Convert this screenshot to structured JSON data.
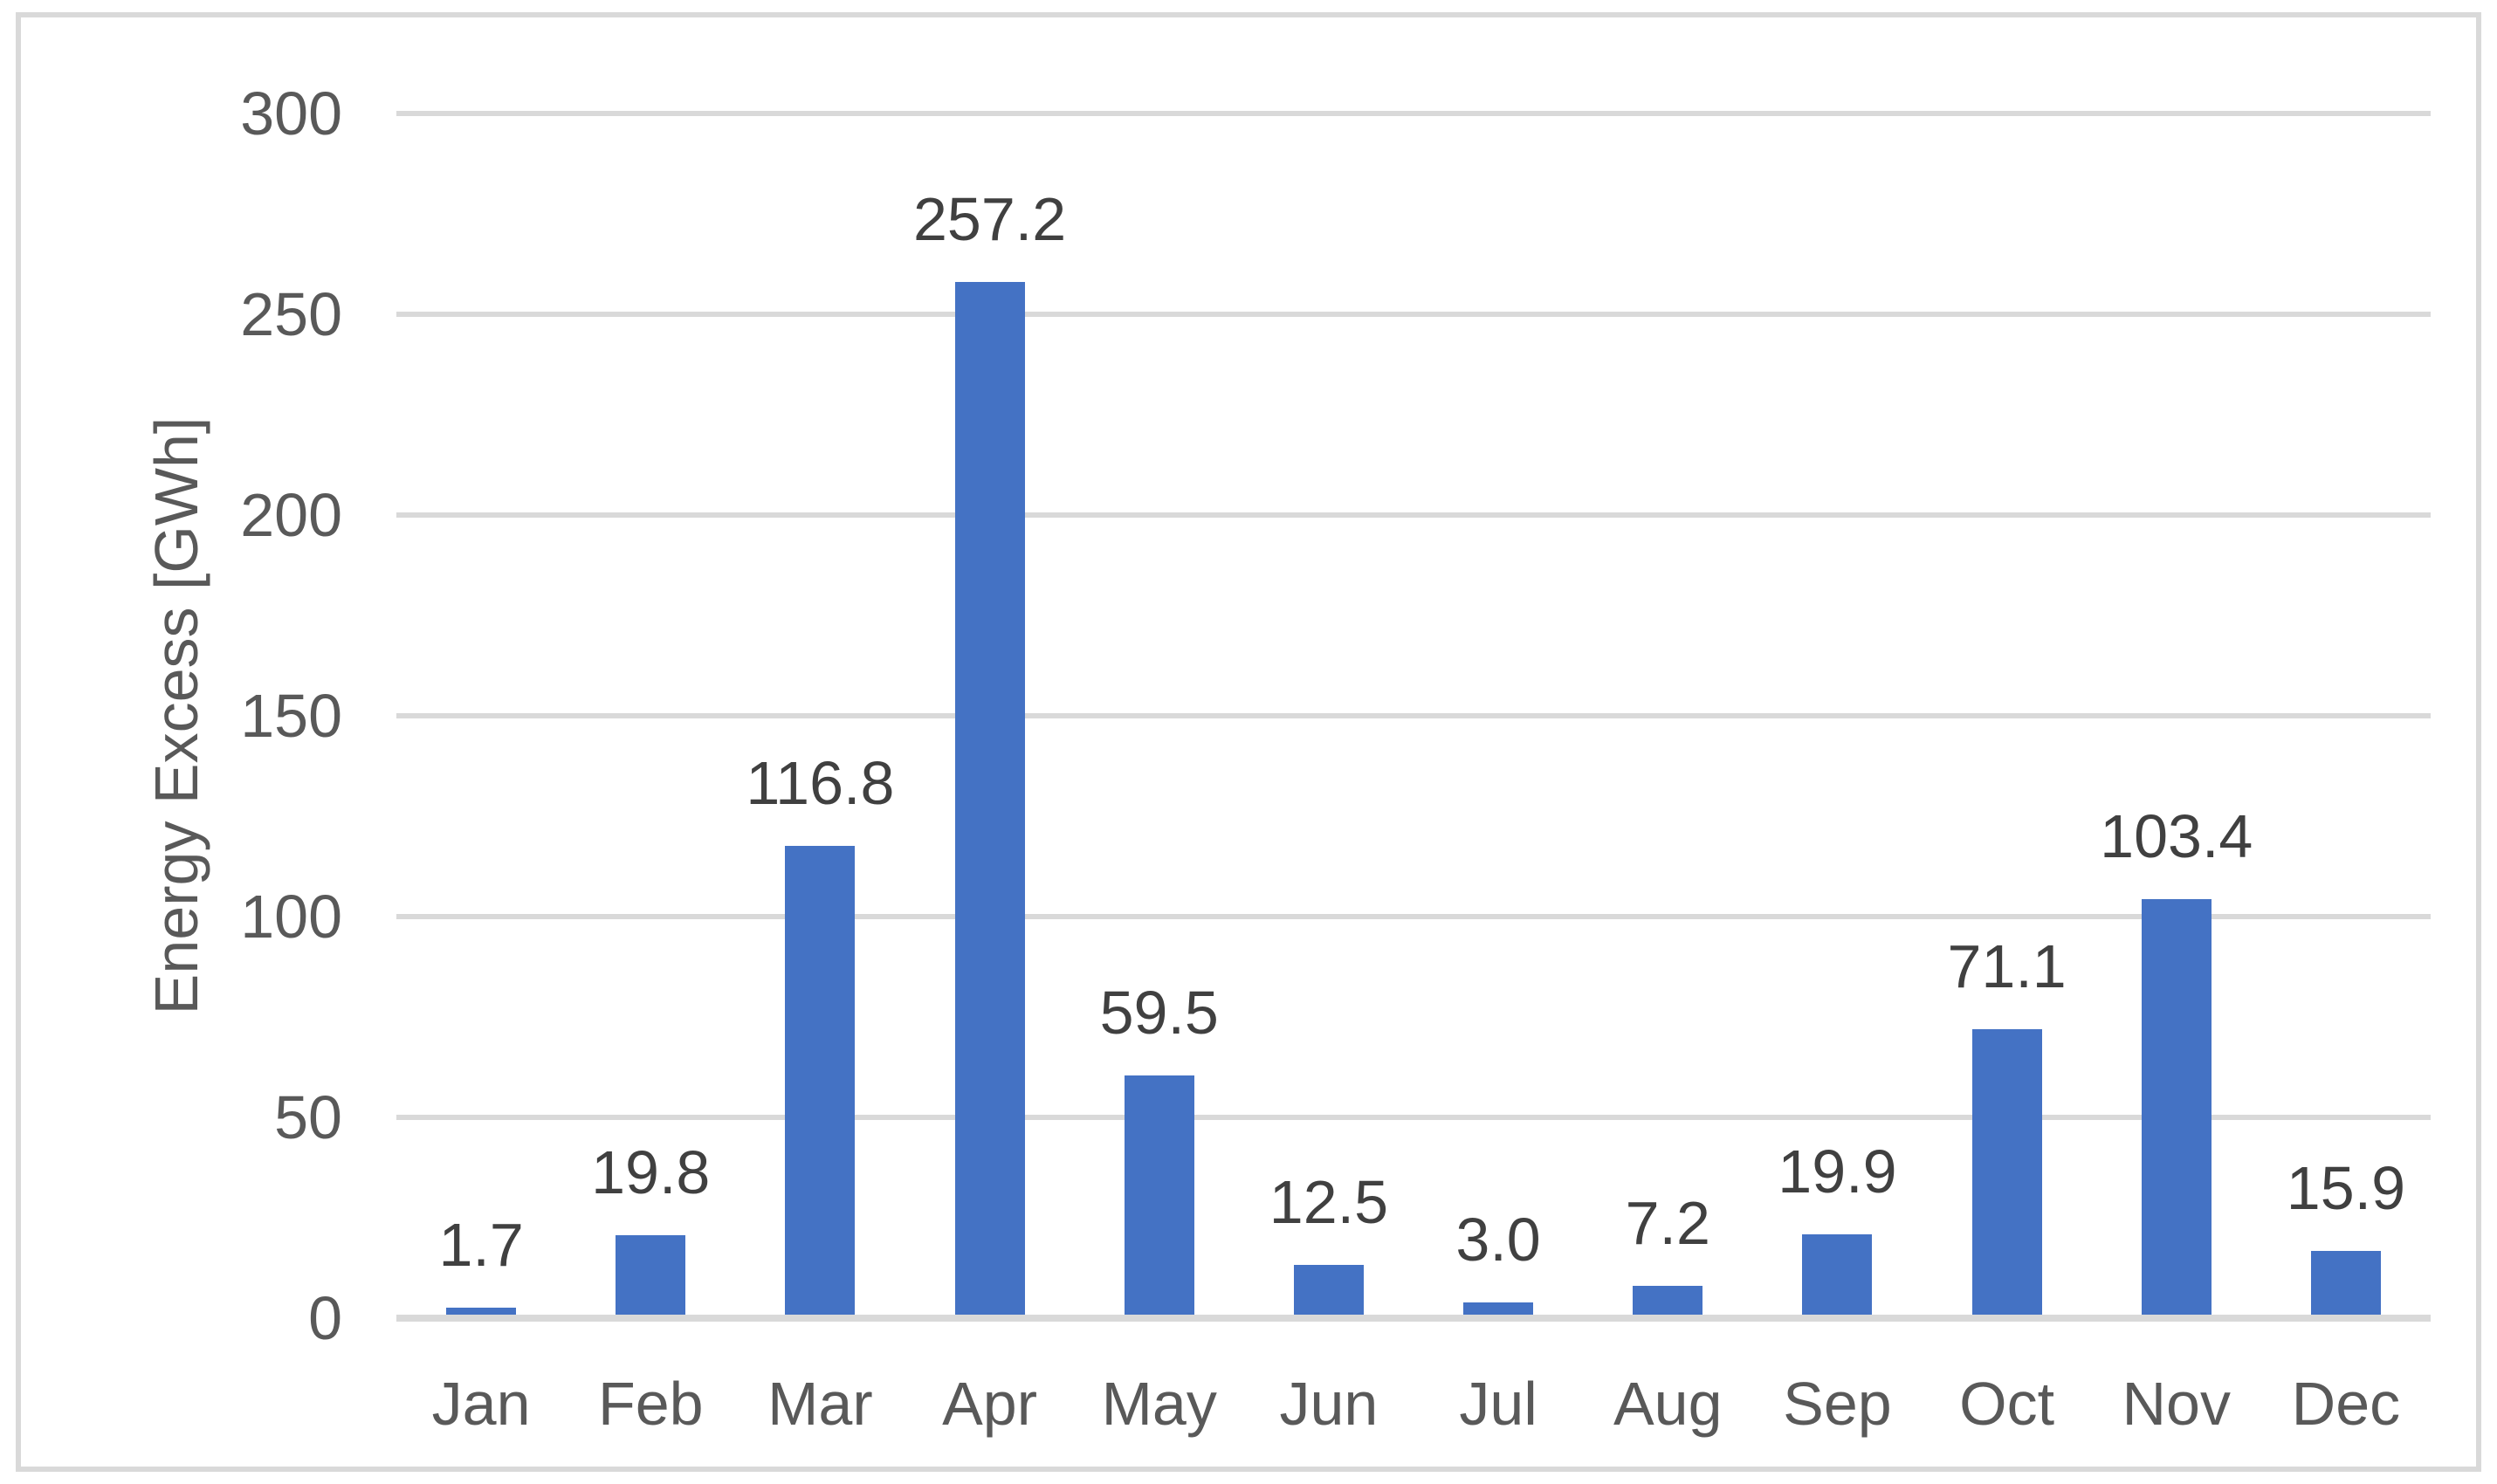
{
  "chart_data": {
    "type": "bar",
    "title": "",
    "categories": [
      "Jan",
      "Feb",
      "Mar",
      "Apr",
      "May",
      "Jun",
      "Jul",
      "Aug",
      "Sep",
      "Oct",
      "Nov",
      "Dec"
    ],
    "values": [
      1.7,
      19.8,
      116.8,
      257.2,
      59.5,
      12.5,
      3.0,
      7.2,
      19.9,
      71.1,
      103.4,
      15.9
    ],
    "data_labels": [
      "1.7",
      "19.8",
      "116.8",
      "257.2",
      "59.5",
      "12.5",
      "3.0",
      "7.2",
      "19.9",
      "71.1",
      "103.4",
      "15.9"
    ],
    "xlabel": "",
    "ylabel": "Energy Excess [GWh]",
    "ylim": [
      0,
      300
    ],
    "ytick_interval": 50,
    "yticks": [
      "0",
      "50",
      "100",
      "150",
      "200",
      "250",
      "300"
    ],
    "grid": true,
    "legend": false,
    "series_name": "Energy Excess",
    "colors": {
      "bar": "#4472C4",
      "data_label_text": "#404040",
      "axis_text": "#595959",
      "gridline": "#D9D9D9",
      "chart_border": "#D9D9D9"
    }
  }
}
